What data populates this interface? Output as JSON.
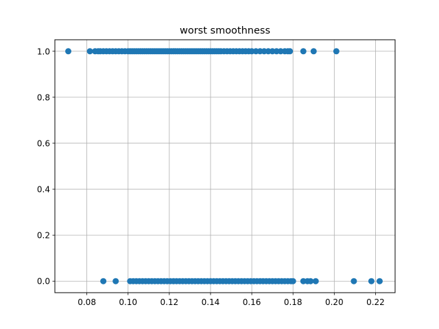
{
  "chart_data": {
    "type": "scatter",
    "title": "worst smoothness",
    "xlabel": "",
    "ylabel": "",
    "xlim": [
      0.0645,
      0.2295
    ],
    "ylim": [
      -0.05,
      1.05
    ],
    "xticks": [
      "0.08",
      "0.10",
      "0.12",
      "0.14",
      "0.16",
      "0.18",
      "0.20",
      "0.22"
    ],
    "yticks": [
      "0.0",
      "0.2",
      "0.4",
      "0.6",
      "0.8",
      "1.0"
    ],
    "grid": true,
    "marker_color": "#1f77b4",
    "series": [
      {
        "x": [
          0.071,
          0.0815,
          0.084,
          0.0855,
          0.0865,
          0.088,
          0.0895,
          0.091,
          0.0925,
          0.094,
          0.0955,
          0.097,
          0.0985,
          0.1,
          0.101,
          0.102,
          0.103,
          0.104,
          0.105,
          0.106,
          0.107,
          0.108,
          0.109,
          0.11,
          0.111,
          0.112,
          0.113,
          0.114,
          0.115,
          0.116,
          0.117,
          0.118,
          0.119,
          0.12,
          0.121,
          0.122,
          0.123,
          0.124,
          0.125,
          0.126,
          0.127,
          0.128,
          0.129,
          0.13,
          0.131,
          0.132,
          0.133,
          0.134,
          0.135,
          0.136,
          0.137,
          0.138,
          0.139,
          0.14,
          0.141,
          0.142,
          0.143,
          0.144,
          0.145,
          0.1465,
          0.148,
          0.1495,
          0.151,
          0.1525,
          0.154,
          0.1555,
          0.157,
          0.1585,
          0.16,
          0.162,
          0.164,
          0.166,
          0.168,
          0.17,
          0.172,
          0.174,
          0.176,
          0.1775,
          0.1785,
          0.185,
          0.19,
          0.201
        ],
        "y": [
          1,
          1,
          1,
          1,
          1,
          1,
          1,
          1,
          1,
          1,
          1,
          1,
          1,
          1,
          1,
          1,
          1,
          1,
          1,
          1,
          1,
          1,
          1,
          1,
          1,
          1,
          1,
          1,
          1,
          1,
          1,
          1,
          1,
          1,
          1,
          1,
          1,
          1,
          1,
          1,
          1,
          1,
          1,
          1,
          1,
          1,
          1,
          1,
          1,
          1,
          1,
          1,
          1,
          1,
          1,
          1,
          1,
          1,
          1,
          1,
          1,
          1,
          1,
          1,
          1,
          1,
          1,
          1,
          1,
          1,
          1,
          1,
          1,
          1,
          1,
          1,
          1,
          1,
          1,
          1,
          1,
          1
        ]
      },
      {
        "x": [
          0.088,
          0.094,
          0.101,
          0.1025,
          0.104,
          0.1055,
          0.107,
          0.1085,
          0.11,
          0.1115,
          0.113,
          0.1145,
          0.116,
          0.1175,
          0.119,
          0.1205,
          0.122,
          0.1235,
          0.125,
          0.1265,
          0.128,
          0.1295,
          0.131,
          0.1325,
          0.134,
          0.1355,
          0.137,
          0.1385,
          0.14,
          0.1415,
          0.143,
          0.1445,
          0.146,
          0.1475,
          0.149,
          0.1505,
          0.152,
          0.1535,
          0.155,
          0.1565,
          0.158,
          0.1595,
          0.161,
          0.1625,
          0.164,
          0.1655,
          0.167,
          0.1685,
          0.17,
          0.1715,
          0.173,
          0.1745,
          0.176,
          0.1775,
          0.179,
          0.18,
          0.185,
          0.187,
          0.1885,
          0.191,
          0.2095,
          0.218,
          0.222
        ],
        "y": [
          0,
          0,
          0,
          0,
          0,
          0,
          0,
          0,
          0,
          0,
          0,
          0,
          0,
          0,
          0,
          0,
          0,
          0,
          0,
          0,
          0,
          0,
          0,
          0,
          0,
          0,
          0,
          0,
          0,
          0,
          0,
          0,
          0,
          0,
          0,
          0,
          0,
          0,
          0,
          0,
          0,
          0,
          0,
          0,
          0,
          0,
          0,
          0,
          0,
          0,
          0,
          0,
          0,
          0,
          0,
          0,
          0,
          0,
          0,
          0,
          0,
          0,
          0
        ]
      }
    ]
  }
}
